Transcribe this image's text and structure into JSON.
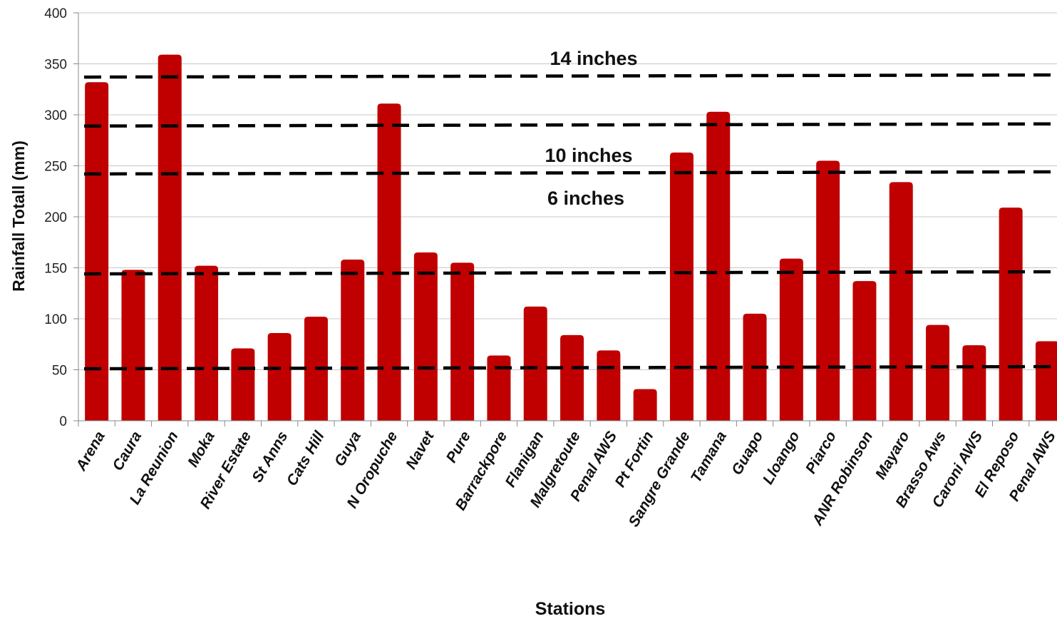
{
  "chart_data": {
    "type": "bar",
    "xlabel": "Stations",
    "ylabel": "Rainfall Totall (mm)",
    "ylim": [
      0,
      400
    ],
    "yticks": [
      0,
      50,
      100,
      150,
      200,
      250,
      300,
      350,
      400
    ],
    "grid": true,
    "bar_color": "#c00000",
    "categories": [
      "Arena",
      "Caura",
      "La Reunion",
      "Moka",
      "River  Estate",
      "St Anns",
      "Cats Hill",
      "Guya",
      "N Oropuche",
      "Navet",
      "Pure",
      "Barrackpore",
      "Flanigan",
      "Malgretoute",
      "Penal AWS",
      "Pt Fortin",
      "Sangre Grande",
      "Tamana",
      "Guapo",
      "Lloango",
      "Piarco",
      "ANR Robinson",
      "Mayaro",
      "Brasso Aws",
      "Caroni AWS",
      "El Reposo",
      "Penal AWS"
    ],
    "values": [
      332,
      148,
      359,
      152,
      71,
      86,
      102,
      158,
      311,
      165,
      155,
      64,
      112,
      84,
      69,
      31,
      263,
      303,
      105,
      159,
      255,
      137,
      234,
      94,
      74,
      209,
      78
    ],
    "reference_lines": [
      {
        "label": "14 inches",
        "y": 337
      },
      {
        "label": "",
        "y": 289
      },
      {
        "label": "10 inches",
        "y": 242
      },
      {
        "label": "6 inches",
        "y": 144
      },
      {
        "label": "",
        "y": 51
      }
    ]
  }
}
